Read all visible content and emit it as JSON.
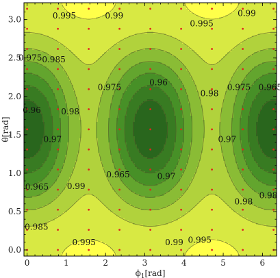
{
  "chart_data": {
    "type": "contour",
    "xlabel": "ϕ1[rad]",
    "xlabel_main": "ϕ",
    "xlabel_sub": "1",
    "xlabel_unit": "[rad]",
    "ylabel": "θ[rad]",
    "ylabel_main": "θ",
    "ylabel_unit": "[rad]",
    "xlim": [
      -0.08,
      6.36
    ],
    "ylim": [
      -0.08,
      3.22
    ],
    "xticks": [
      0,
      1,
      2,
      3,
      4,
      5,
      6
    ],
    "xtick_labels": [
      "0",
      "1",
      "2",
      "3",
      "4",
      "5",
      "6"
    ],
    "yticks": [
      0.0,
      0.5,
      1.0,
      1.5,
      2.0,
      2.5,
      3.0
    ],
    "ytick_labels": [
      "0.0",
      "0.5",
      "1.0",
      "1.5",
      "2.0",
      "2.5",
      "3.0"
    ],
    "contour_levels": [
      0.955,
      0.96,
      0.965,
      0.97,
      0.975,
      0.98,
      0.985,
      0.99,
      0.995
    ],
    "contour_labels": [
      {
        "text": "0.995",
        "x": 0.95,
        "y": 3.05
      },
      {
        "text": "0.99",
        "x": 2.22,
        "y": 3.05
      },
      {
        "text": "0.995",
        "x": 4.45,
        "y": 2.95
      },
      {
        "text": "0.99",
        "x": 5.6,
        "y": 3.08
      },
      {
        "text": "0.975",
        "x": 0.08,
        "y": 2.5
      },
      {
        "text": "0.985",
        "x": 0.68,
        "y": 2.48
      },
      {
        "text": "0.975",
        "x": 2.1,
        "y": 2.12
      },
      {
        "text": "0.96",
        "x": 3.35,
        "y": 2.18
      },
      {
        "text": "0.975",
        "x": 5.4,
        "y": 2.12
      },
      {
        "text": "0.965",
        "x": 6.2,
        "y": 2.12
      },
      {
        "text": "0.96",
        "x": 0.12,
        "y": 1.82
      },
      {
        "text": "0.98",
        "x": 1.1,
        "y": 1.8
      },
      {
        "text": "0.98",
        "x": 4.65,
        "y": 2.04
      },
      {
        "text": "0.97",
        "x": 0.65,
        "y": 1.44
      },
      {
        "text": "0.97",
        "x": 5.1,
        "y": 1.44
      },
      {
        "text": "0.965",
        "x": 2.32,
        "y": 0.98
      },
      {
        "text": "0.97",
        "x": 3.55,
        "y": 0.96
      },
      {
        "text": "0.965",
        "x": 0.25,
        "y": 0.82
      },
      {
        "text": "0.99",
        "x": 1.25,
        "y": 0.83
      },
      {
        "text": "0.98",
        "x": 5.52,
        "y": 0.63
      },
      {
        "text": "0.98",
        "x": 6.15,
        "y": 0.71
      },
      {
        "text": "0.985",
        "x": 0.24,
        "y": 0.3
      },
      {
        "text": "0.995",
        "x": 1.45,
        "y": 0.1
      },
      {
        "text": "0.99",
        "x": 3.75,
        "y": 0.1
      },
      {
        "text": "0.995",
        "x": 4.4,
        "y": 0.13
      }
    ],
    "sample_points_x": [
      0,
      0.785,
      1.571,
      2.356,
      3.142,
      3.927,
      4.712,
      5.498,
      6.283
    ],
    "sample_points_y": [
      0,
      0.262,
      0.524,
      0.785,
      1.047,
      1.309,
      1.571,
      1.833,
      2.094,
      2.356,
      2.618,
      2.88,
      3.142
    ],
    "colors": {
      "low": "#0a3d12",
      "mid": "#4f9a2a",
      "high": "#ffff4a",
      "contour_line": "#5a5a2a",
      "sample_point": "#e0261e"
    }
  }
}
